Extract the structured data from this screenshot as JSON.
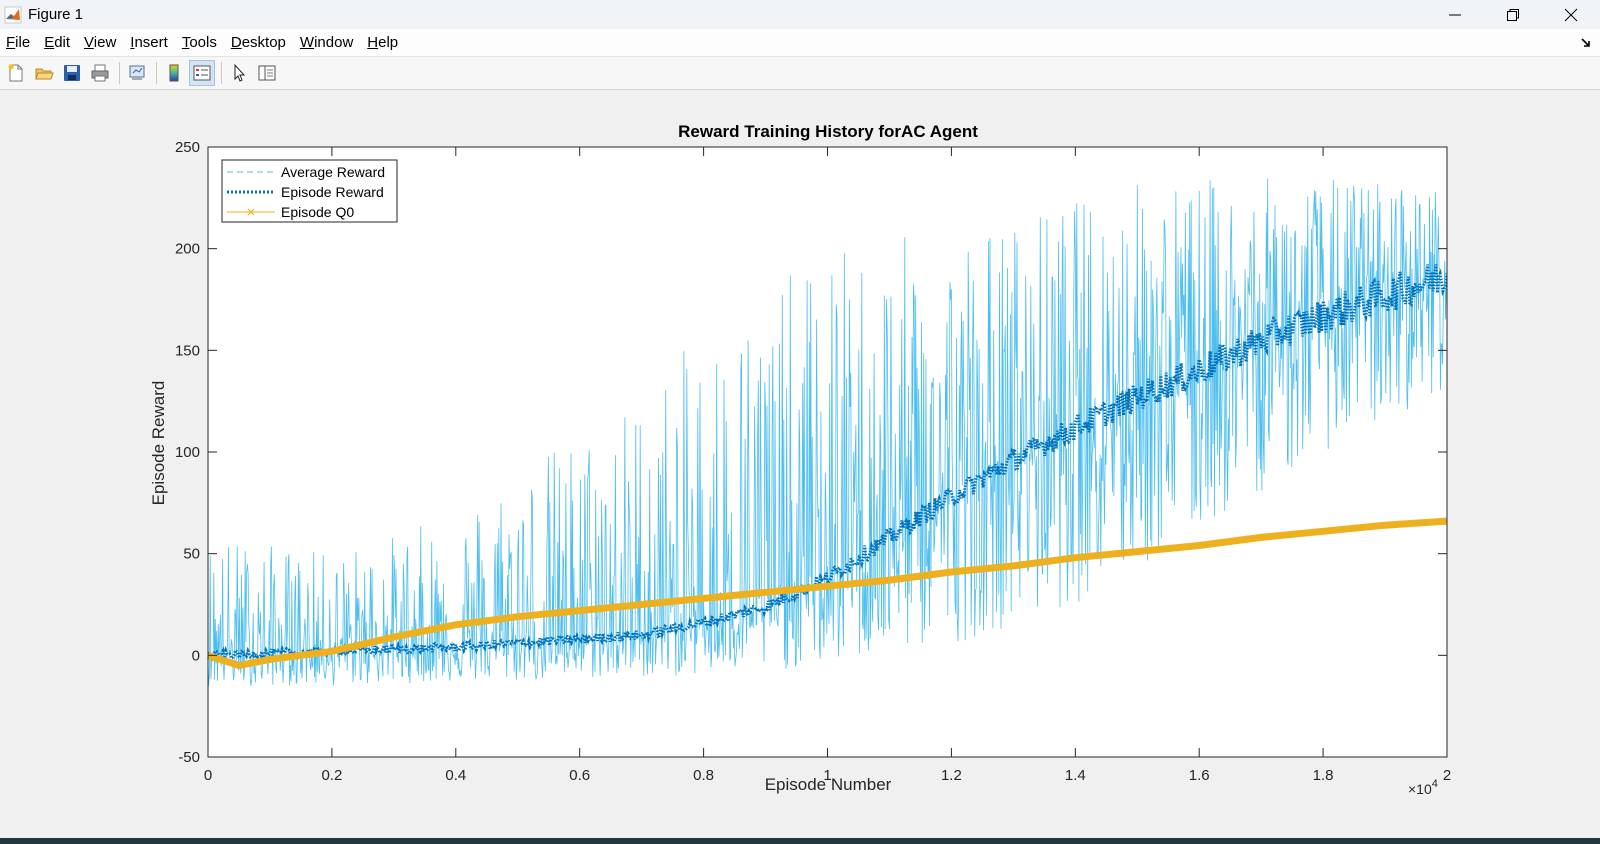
{
  "window": {
    "title": "Figure 1",
    "controls": [
      "minimize-icon",
      "restore-icon",
      "close-icon"
    ]
  },
  "menu": {
    "items": [
      {
        "label": "File",
        "key": "F"
      },
      {
        "label": "Edit",
        "key": "E"
      },
      {
        "label": "View",
        "key": "V"
      },
      {
        "label": "Insert",
        "key": "I"
      },
      {
        "label": "Tools",
        "key": "T"
      },
      {
        "label": "Desktop",
        "key": "D"
      },
      {
        "label": "Window",
        "key": "W"
      },
      {
        "label": "Help",
        "key": "H"
      }
    ]
  },
  "toolbar": {
    "buttons": [
      "new-figure-icon",
      "open-file-icon",
      "save-icon",
      "print-icon",
      "link-axes-icon",
      "colorbar-icon",
      "legend-icon",
      "select-pointer-icon",
      "property-inspector-icon"
    ]
  },
  "chart_data": {
    "type": "line",
    "title": "Reward Training History forAC Agent",
    "xlabel": "Episode Number",
    "ylabel": "Episode Reward",
    "x_exponent_label": "×10",
    "x_exponent": "4",
    "xlim": [
      0,
      20000
    ],
    "ylim": [
      -50,
      250
    ],
    "x_ticks": [
      0,
      2000,
      4000,
      6000,
      8000,
      10000,
      12000,
      14000,
      16000,
      18000,
      20000
    ],
    "x_tick_labels": [
      "0",
      "0.2",
      "0.4",
      "0.6",
      "0.8",
      "1",
      "1.2",
      "1.4",
      "1.6",
      "1.8",
      "2"
    ],
    "y_ticks": [
      -50,
      0,
      50,
      100,
      150,
      200,
      250
    ],
    "y_tick_labels": [
      "-50",
      "0",
      "50",
      "100",
      "150",
      "200",
      "250"
    ],
    "legend_position": "top-left",
    "series": [
      {
        "name": "Average Reward",
        "color": "#4DBEEE",
        "style": "dashed",
        "x": [
          0,
          1000,
          2000,
          3000,
          4000,
          5000,
          6000,
          7000,
          8000,
          9000,
          10000,
          11000,
          12000,
          13000,
          14000,
          15000,
          16000,
          17000,
          18000,
          19000,
          20000
        ],
        "y_mean": [
          0,
          1,
          2,
          3,
          4,
          6,
          8,
          10,
          16,
          24,
          38,
          58,
          78,
          96,
          112,
          127,
          140,
          155,
          167,
          177,
          187
        ],
        "y_min": [
          -15,
          -15,
          -15,
          -14,
          -13,
          -13,
          -12,
          -11,
          -10,
          -8,
          -5,
          0,
          5,
          15,
          25,
          40,
          60,
          80,
          100,
          115,
          130
        ],
        "y_max": [
          60,
          55,
          50,
          60,
          70,
          95,
          110,
          130,
          160,
          180,
          200,
          205,
          210,
          215,
          225,
          235,
          235,
          235,
          235,
          235,
          230
        ]
      },
      {
        "name": "Episode Reward",
        "color": "#0072BD",
        "style": "dotted",
        "x": [
          0,
          1000,
          2000,
          3000,
          4000,
          5000,
          6000,
          7000,
          8000,
          9000,
          10000,
          11000,
          12000,
          13000,
          14000,
          15000,
          16000,
          17000,
          18000,
          19000,
          20000
        ],
        "y": [
          0,
          1,
          2,
          3,
          4,
          6,
          8,
          10,
          16,
          24,
          38,
          58,
          78,
          96,
          112,
          127,
          140,
          155,
          167,
          177,
          187
        ]
      },
      {
        "name": "Episode Q0",
        "color": "#EDB120",
        "style": "solid-x",
        "x": [
          0,
          500,
          1000,
          2000,
          3000,
          4000,
          5000,
          6000,
          7000,
          8000,
          9000,
          10000,
          11000,
          12000,
          13000,
          14000,
          15000,
          16000,
          17000,
          18000,
          19000,
          20000
        ],
        "y": [
          0,
          -5,
          -2,
          2,
          9,
          15,
          19,
          22,
          25,
          28,
          31,
          34,
          37,
          41,
          44,
          48,
          51,
          54,
          58,
          61,
          64,
          66
        ]
      }
    ]
  }
}
